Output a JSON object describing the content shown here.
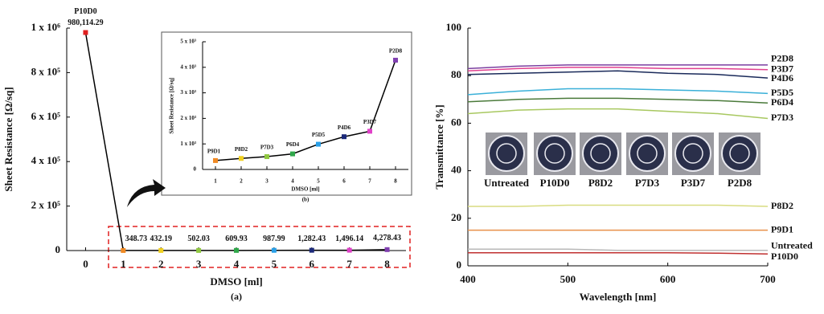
{
  "chart_data": [
    {
      "type": "line",
      "x": [
        0,
        1,
        2,
        3,
        4,
        5,
        6,
        7,
        8
      ],
      "values": [
        980114.29,
        348.73,
        432.19,
        502.03,
        609.93,
        987.99,
        1282.43,
        1496.14,
        4278.43
      ],
      "value_labels": [
        "980,114.29",
        "348.73",
        "432.19",
        "502.03",
        "609.93",
        "987.99",
        "1,282.43",
        "1,496.14",
        "4,278.43"
      ],
      "point_labels": [
        "P10D0",
        null,
        null,
        null,
        null,
        null,
        null,
        null,
        null
      ],
      "marker_colors": [
        "#e02020",
        "#f08a24",
        "#f0d020",
        "#90c840",
        "#2fa84a",
        "#2aa0e8",
        "#1c2a7a",
        "#e040c8",
        "#8040b0"
      ],
      "color": "#000000",
      "xlim": [
        -0.5,
        8.5
      ],
      "xticks": [
        0,
        1,
        2,
        3,
        4,
        5,
        6,
        7,
        8
      ],
      "ylim": [
        0,
        1000000
      ],
      "yticks": [
        0,
        {
          "value": 200000,
          "label": "2 x 10⁵"
        },
        {
          "value": 400000,
          "label": "4 x 10⁵"
        },
        {
          "value": 600000,
          "label": "6 x 10⁵"
        },
        {
          "value": 800000,
          "label": "8 x 10⁵"
        },
        {
          "value": 1000000,
          "label": "1 x 10⁶"
        }
      ],
      "xlabel": "DMSO [ml]",
      "ylabel": "Sheet Resistance [Ω/sq]",
      "caption": "(a)"
    },
    {
      "type": "line",
      "x": [
        1,
        2,
        3,
        4,
        5,
        6,
        7,
        8
      ],
      "values": [
        348.73,
        432.19,
        502.03,
        609.93,
        987.99,
        1282.43,
        1496.14,
        4278.43
      ],
      "point_labels": [
        "P9D1",
        "P8D2",
        "P7D3",
        "P6D4",
        "P5D5",
        "P4D6",
        "P3D7",
        "P2D8"
      ],
      "marker_colors": [
        "#f08a24",
        "#f0d020",
        "#90c840",
        "#2fa84a",
        "#2aa0e8",
        "#1c2a7a",
        "#e040c8",
        "#8040b0"
      ],
      "color": "#000000",
      "xlim": [
        0.5,
        8.5
      ],
      "xticks": [
        1,
        2,
        3,
        4,
        5,
        6,
        7,
        8
      ],
      "ylim": [
        0,
        5000
      ],
      "yticks": [
        0,
        {
          "value": 1000,
          "label": "1 x 10³"
        },
        {
          "value": 2000,
          "label": "2 x 10³"
        },
        {
          "value": 3000,
          "label": "3 x 10³"
        },
        {
          "value": 4000,
          "label": "4 x 10³"
        },
        {
          "value": 5000,
          "label": "5 x 10³"
        }
      ],
      "xlabel": "DMSO [ml]",
      "ylabel": "Sheet Resistance [Ω/sq]",
      "caption": "(b)"
    },
    {
      "type": "line",
      "x": [
        400,
        450,
        500,
        550,
        600,
        650,
        700
      ],
      "series": [
        {
          "name": "P2D8",
          "color": "#7b3fa0",
          "values": [
            83,
            84,
            84.5,
            84.5,
            84.5,
            84.5,
            84.5
          ]
        },
        {
          "name": "P3D7",
          "color": "#e0408f",
          "values": [
            82,
            83,
            83.5,
            83.5,
            83,
            83,
            82.5
          ]
        },
        {
          "name": "P4D6",
          "color": "#1a2a5a",
          "values": [
            80.5,
            81,
            81.5,
            82,
            81,
            80.5,
            79
          ]
        },
        {
          "name": "P5D5",
          "color": "#3ab0d8",
          "values": [
            72,
            73.5,
            74.5,
            74.5,
            74,
            73.5,
            72.5
          ]
        },
        {
          "name": "P6D4",
          "color": "#4a7a3a",
          "values": [
            69,
            70,
            70.5,
            70.5,
            70,
            69.5,
            68.5
          ]
        },
        {
          "name": "P7D3",
          "color": "#a8c860",
          "values": [
            64,
            65.5,
            66,
            66,
            65,
            64,
            62
          ]
        },
        {
          "name": "P8D2",
          "color": "#d8dc80",
          "values": [
            25,
            25,
            25.5,
            25.5,
            25.5,
            25.5,
            25
          ]
        },
        {
          "name": "P9D1",
          "color": "#e8904a",
          "values": [
            15,
            15,
            15,
            15,
            15,
            15,
            15
          ]
        },
        {
          "name": "Untreated",
          "color": "#b8b8b8",
          "values": [
            7,
            7,
            7,
            6.5,
            6.5,
            6.5,
            6.5
          ]
        },
        {
          "name": "P10D0",
          "color": "#c03030",
          "values": [
            5.5,
            5.5,
            5.5,
            5.5,
            5.5,
            5.3,
            5
          ]
        }
      ],
      "photo_labels": [
        "Untreated",
        "P10D0",
        "P8D2",
        "P7D3",
        "P3D7",
        "P2D8"
      ],
      "xlim": [
        400,
        700
      ],
      "xticks": [
        400,
        500,
        600,
        700
      ],
      "ylim": [
        0,
        100
      ],
      "yticks": [
        0,
        20,
        40,
        60,
        80,
        100
      ],
      "xlabel": "Wavelength [nm]",
      "ylabel": "Transmittance [%]"
    }
  ]
}
